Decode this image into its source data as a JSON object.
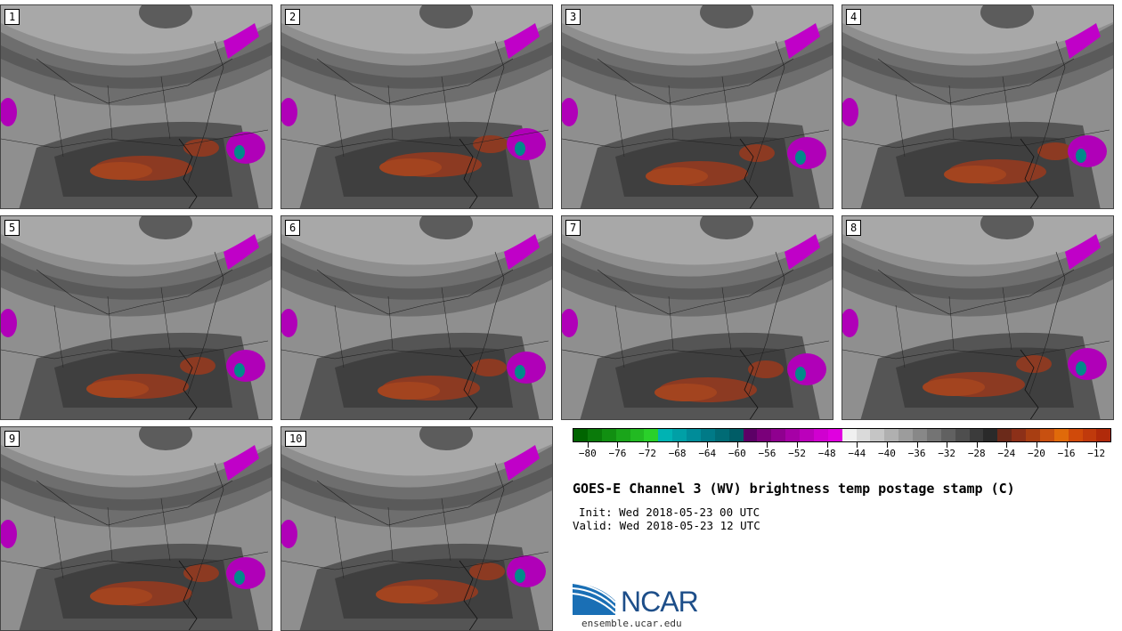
{
  "panels": [
    "1",
    "2",
    "3",
    "4",
    "5",
    "6",
    "7",
    "8",
    "9",
    "10"
  ],
  "colorbar": {
    "colors": [
      "#006400",
      "#0a7a0a",
      "#118f11",
      "#1aa51a",
      "#22ba22",
      "#2ad02a",
      "#00b3b3",
      "#00a0a6",
      "#008c99",
      "#007a87",
      "#006b75",
      "#005c66",
      "#5c0066",
      "#7a007a",
      "#8f008f",
      "#a600a6",
      "#bb00bb",
      "#d000d0",
      "#e000e0",
      "#f0f0f0",
      "#dadada",
      "#c5c5c5",
      "#b0b0b0",
      "#9c9c9c",
      "#888888",
      "#747474",
      "#616161",
      "#4e4e4e",
      "#3b3b3b",
      "#2a2a2a",
      "#6b2a1a",
      "#8c3018",
      "#a83e12",
      "#c85010",
      "#e06a0a",
      "#d04a0a",
      "#c03a0c",
      "#b02a0a"
    ],
    "tick_labels": [
      "−80",
      "−76",
      "−72",
      "−68",
      "−64",
      "−60",
      "−56",
      "−52",
      "−48",
      "−44",
      "−40",
      "−36",
      "−32",
      "−28",
      "−24",
      "−20",
      "−16",
      "−12"
    ],
    "range": [
      -82,
      -10
    ]
  },
  "title": "GOES-E Channel 3 (WV) brightness temp postage stamp (C)",
  "init_text": "Init: Wed 2018-05-23 00 UTC",
  "valid_text": "Valid: Wed 2018-05-23 12 UTC",
  "logo_text": "NCAR",
  "site": "ensemble.ucar.edu"
}
